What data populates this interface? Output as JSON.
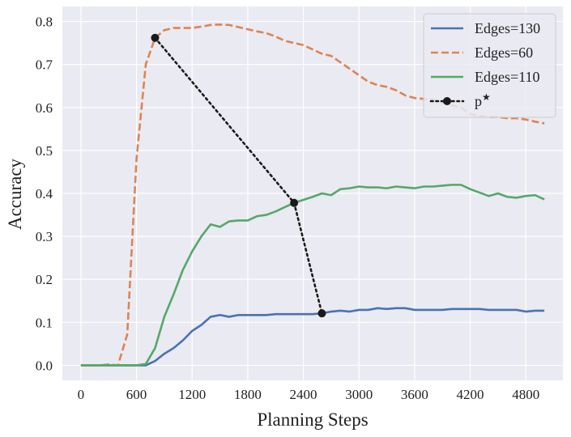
{
  "chart_data": {
    "type": "line",
    "xlabel": "Planning Steps",
    "ylabel": "Accuracy",
    "xlim": [
      -200,
      5200
    ],
    "ylim": [
      -0.035,
      0.835
    ],
    "xticks": [
      0,
      600,
      1200,
      1800,
      2400,
      3000,
      3600,
      4200,
      4800
    ],
    "xtick_labels": [
      "0",
      "600",
      "1200",
      "1800",
      "2400",
      "3000",
      "3600",
      "4200",
      "4800"
    ],
    "yticks": [
      0.0,
      0.1,
      0.2,
      0.3,
      0.4,
      0.5,
      0.6,
      0.7,
      0.8
    ],
    "ytick_labels": [
      "0.0",
      "0.1",
      "0.2",
      "0.3",
      "0.4",
      "0.5",
      "0.6",
      "0.7",
      "0.8"
    ],
    "grid": true,
    "legend_position": "top-right",
    "background": "#eaeaf2",
    "series": [
      {
        "name": "Edges=130",
        "color": "#4c72b0",
        "dash": "solid",
        "x": [
          0,
          100,
          200,
          300,
          400,
          500,
          600,
          700,
          800,
          900,
          1000,
          1100,
          1200,
          1300,
          1400,
          1500,
          1600,
          1700,
          1800,
          1900,
          2000,
          2100,
          2200,
          2300,
          2400,
          2500,
          2600,
          2700,
          2800,
          2900,
          3000,
          3100,
          3200,
          3300,
          3400,
          3500,
          3600,
          3700,
          3800,
          3900,
          4000,
          4100,
          4200,
          4300,
          4400,
          4500,
          4600,
          4700,
          4800,
          4900,
          5000
        ],
        "y": [
          0.0,
          0.0,
          0.0,
          0.0,
          0.0,
          0.0,
          0.0,
          0.0,
          0.01,
          0.027,
          0.04,
          0.058,
          0.08,
          0.094,
          0.113,
          0.117,
          0.113,
          0.117,
          0.117,
          0.117,
          0.117,
          0.119,
          0.119,
          0.119,
          0.119,
          0.119,
          0.121,
          0.125,
          0.127,
          0.125,
          0.129,
          0.129,
          0.133,
          0.131,
          0.133,
          0.133,
          0.129,
          0.129,
          0.129,
          0.129,
          0.131,
          0.131,
          0.131,
          0.131,
          0.129,
          0.129,
          0.129,
          0.129,
          0.125,
          0.127,
          0.127
        ]
      },
      {
        "name": "Edges=60",
        "color": "#dd8452",
        "dash": "dashed",
        "x": [
          0,
          100,
          200,
          300,
          400,
          500,
          600,
          700,
          800,
          900,
          1000,
          1100,
          1200,
          1300,
          1400,
          1500,
          1600,
          1700,
          1800,
          1900,
          2000,
          2100,
          2200,
          2300,
          2400,
          2500,
          2600,
          2700,
          2800,
          2900,
          3000,
          3100,
          3200,
          3300,
          3400,
          3500,
          3600,
          3700,
          3800,
          3900,
          4000,
          4100,
          4200,
          4300,
          4400,
          4500,
          4600,
          4700,
          4800,
          4900,
          5000
        ],
        "y": [
          0.0,
          0.0,
          0.0,
          0.002,
          0.0,
          0.072,
          0.48,
          0.7,
          0.762,
          0.78,
          0.785,
          0.785,
          0.785,
          0.788,
          0.792,
          0.793,
          0.792,
          0.787,
          0.782,
          0.777,
          0.773,
          0.765,
          0.755,
          0.75,
          0.745,
          0.735,
          0.725,
          0.72,
          0.705,
          0.69,
          0.675,
          0.66,
          0.652,
          0.648,
          0.64,
          0.628,
          0.622,
          0.62,
          0.618,
          0.612,
          0.605,
          0.6,
          0.585,
          0.58,
          0.578,
          0.578,
          0.575,
          0.575,
          0.572,
          0.567,
          0.563
        ]
      },
      {
        "name": "Edges=110",
        "color": "#55a868",
        "dash": "solid",
        "x": [
          0,
          100,
          200,
          300,
          400,
          500,
          600,
          700,
          800,
          900,
          1000,
          1100,
          1200,
          1300,
          1400,
          1500,
          1600,
          1700,
          1800,
          1900,
          2000,
          2100,
          2200,
          2300,
          2400,
          2500,
          2600,
          2700,
          2800,
          2900,
          3000,
          3100,
          3200,
          3300,
          3400,
          3500,
          3600,
          3700,
          3800,
          3900,
          4000,
          4100,
          4200,
          4300,
          4400,
          4500,
          4600,
          4700,
          4800,
          4900,
          5000
        ],
        "y": [
          0.0,
          0.0,
          0.0,
          0.0,
          0.0,
          0.0,
          0.0,
          0.003,
          0.04,
          0.113,
          0.165,
          0.222,
          0.265,
          0.3,
          0.328,
          0.322,
          0.335,
          0.337,
          0.337,
          0.347,
          0.35,
          0.358,
          0.368,
          0.378,
          0.385,
          0.392,
          0.4,
          0.396,
          0.41,
          0.412,
          0.416,
          0.414,
          0.414,
          0.412,
          0.416,
          0.414,
          0.412,
          0.416,
          0.416,
          0.418,
          0.42,
          0.42,
          0.41,
          0.402,
          0.394,
          0.4,
          0.392,
          0.39,
          0.394,
          0.396,
          0.386
        ]
      },
      {
        "name": "p*",
        "color": "#1a1a1a",
        "dash": "dotted",
        "marker": "circle",
        "x": [
          800,
          2300,
          2600
        ],
        "y": [
          0.762,
          0.378,
          0.121
        ]
      }
    ]
  }
}
